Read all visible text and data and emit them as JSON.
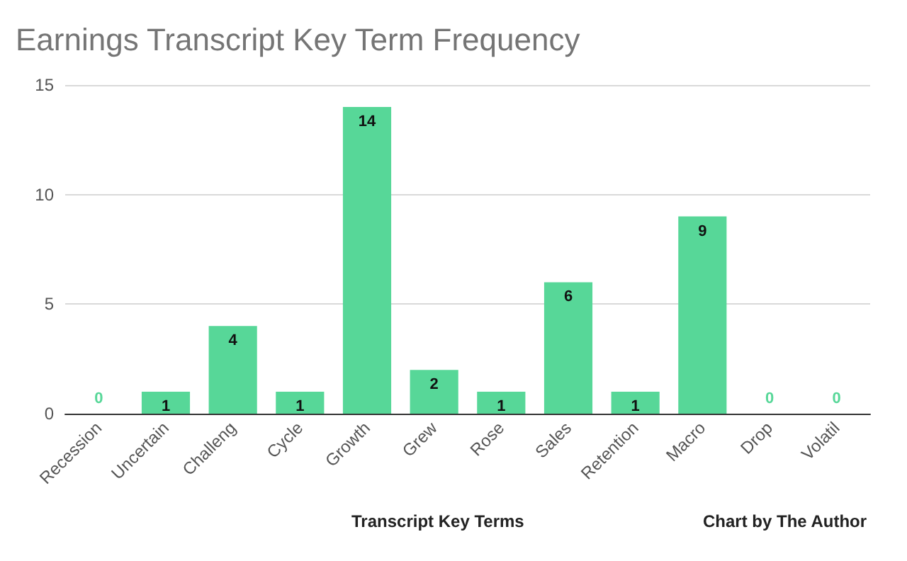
{
  "chart_data": {
    "type": "bar",
    "title": "Earnings Transcript Key Term Frequency",
    "xlabel": "Transcript Key Terms",
    "annotations": [
      "Chart by The Author"
    ],
    "categories": [
      "Recession",
      "Uncertain",
      "Challeng",
      "Cycle",
      "Growth",
      "Grew",
      "Rose",
      "Sales",
      "Retention",
      "Macro",
      "Drop",
      "Volatil"
    ],
    "values": [
      0,
      1,
      4,
      1,
      14,
      2,
      1,
      6,
      1,
      9,
      0,
      0
    ],
    "color": "#57d798",
    "ylim": [
      0,
      15
    ],
    "yticks": [
      0,
      5,
      10,
      15
    ],
    "grid": "y",
    "data_labels": true
  }
}
